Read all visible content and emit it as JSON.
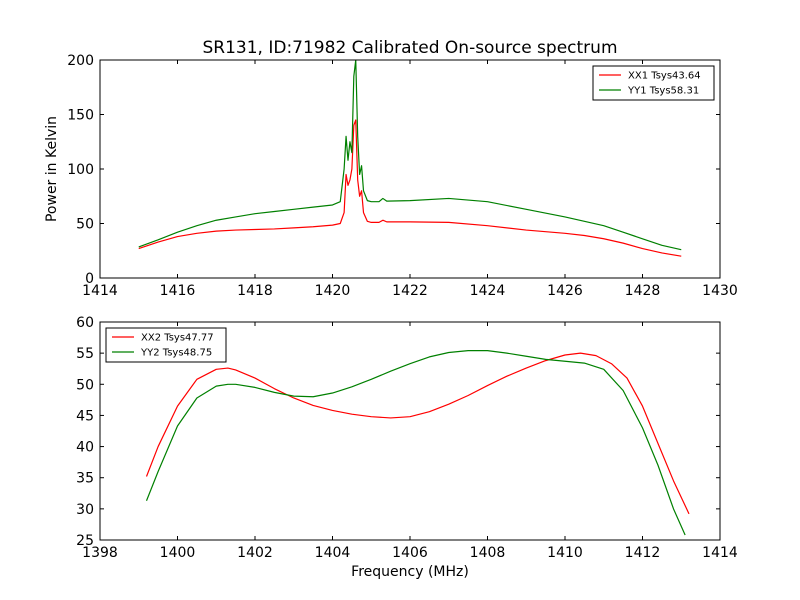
{
  "figure": {
    "title": "SR131, ID:71982 Calibrated On-source spectrum"
  },
  "chart_data": [
    {
      "type": "line",
      "xlim": [
        1414,
        1430
      ],
      "ylim": [
        0,
        200
      ],
      "xticks": [
        1414,
        1416,
        1418,
        1420,
        1422,
        1424,
        1426,
        1428,
        1430
      ],
      "yticks": [
        0,
        50,
        100,
        150,
        200
      ],
      "xlabel": "",
      "ylabel": "Power in Kelvin",
      "legend_position": "top-right",
      "grid": false,
      "series": [
        {
          "name": "XX1 Tsys43.64",
          "color": "#ff0000",
          "x": [
            1415.0,
            1415.5,
            1416.0,
            1416.5,
            1417.0,
            1417.5,
            1418.0,
            1418.5,
            1419.0,
            1419.5,
            1420.0,
            1420.2,
            1420.3,
            1420.35,
            1420.4,
            1420.45,
            1420.5,
            1420.55,
            1420.6,
            1420.65,
            1420.7,
            1420.75,
            1420.8,
            1420.9,
            1421.0,
            1421.2,
            1421.3,
            1421.4,
            1422.0,
            1423.0,
            1424.0,
            1425.0,
            1426.0,
            1426.5,
            1427.0,
            1427.5,
            1428.0,
            1428.5,
            1429.0
          ],
          "y": [
            27,
            33,
            38,
            41,
            43,
            44,
            44.5,
            45,
            46,
            47,
            48.5,
            50,
            60,
            95,
            85,
            90,
            100,
            140,
            145,
            90,
            75,
            80,
            60,
            52,
            51,
            51,
            53,
            51.5,
            51.5,
            51,
            48,
            44,
            41,
            39,
            36,
            32,
            27,
            23,
            20
          ]
        },
        {
          "name": "YY1 Tsys58.31",
          "color": "#008000",
          "x": [
            1415.0,
            1415.5,
            1416.0,
            1416.5,
            1417.0,
            1417.5,
            1418.0,
            1418.5,
            1419.0,
            1419.5,
            1420.0,
            1420.2,
            1420.3,
            1420.35,
            1420.4,
            1420.45,
            1420.5,
            1420.55,
            1420.6,
            1420.65,
            1420.7,
            1420.75,
            1420.8,
            1420.9,
            1421.0,
            1421.2,
            1421.3,
            1421.4,
            1422.0,
            1423.0,
            1424.0,
            1425.0,
            1426.0,
            1426.5,
            1427.0,
            1427.5,
            1428.0,
            1428.5,
            1429.0
          ],
          "y": [
            28.5,
            35,
            42,
            48,
            53,
            56,
            59,
            61,
            63,
            65,
            67,
            70,
            100,
            130,
            108,
            125,
            115,
            185,
            200,
            130,
            95,
            103,
            80,
            71,
            70,
            70,
            73,
            70.5,
            71,
            73,
            70,
            63,
            56,
            52,
            48,
            42,
            36,
            30,
            26
          ]
        }
      ]
    },
    {
      "type": "line",
      "xlim": [
        1398,
        1414
      ],
      "ylim": [
        25,
        60
      ],
      "xticks": [
        1398,
        1400,
        1402,
        1404,
        1406,
        1408,
        1410,
        1412,
        1414
      ],
      "yticks": [
        25,
        30,
        35,
        40,
        45,
        50,
        55,
        60
      ],
      "xlabel": "Frequency (MHz)",
      "ylabel": "",
      "legend_position": "top-left",
      "grid": false,
      "series": [
        {
          "name": "XX2 Tsys47.77",
          "color": "#ff0000",
          "x": [
            1399.2,
            1399.5,
            1400.0,
            1400.5,
            1401.0,
            1401.3,
            1401.5,
            1402.0,
            1402.5,
            1403.0,
            1403.5,
            1404.0,
            1404.5,
            1405.0,
            1405.5,
            1406.0,
            1406.5,
            1407.0,
            1407.5,
            1408.0,
            1408.5,
            1409.0,
            1409.5,
            1410.0,
            1410.4,
            1410.8,
            1411.2,
            1411.6,
            1412.0,
            1412.4,
            1412.8,
            1413.2
          ],
          "y": [
            35.2,
            40,
            46.5,
            50.8,
            52.4,
            52.6,
            52.3,
            51,
            49.3,
            47.8,
            46.6,
            45.8,
            45.2,
            44.8,
            44.6,
            44.8,
            45.6,
            46.8,
            48.2,
            49.8,
            51.3,
            52.6,
            53.8,
            54.7,
            55,
            54.6,
            53.3,
            51,
            46.5,
            40.5,
            34.5,
            29.2
          ]
        },
        {
          "name": "YY2 Tsys48.75",
          "color": "#008000",
          "x": [
            1399.2,
            1399.5,
            1400.0,
            1400.5,
            1401.0,
            1401.3,
            1401.5,
            1402.0,
            1402.5,
            1403.0,
            1403.5,
            1404.0,
            1404.5,
            1405.0,
            1405.5,
            1406.0,
            1406.5,
            1407.0,
            1407.5,
            1408.0,
            1408.5,
            1409.0,
            1409.5,
            1410.0,
            1410.5,
            1411.0,
            1411.5,
            1412.0,
            1412.4,
            1412.8,
            1413.1
          ],
          "y": [
            31.3,
            36,
            43.3,
            47.8,
            49.7,
            50,
            50,
            49.5,
            48.7,
            48.1,
            48,
            48.6,
            49.6,
            50.8,
            52.1,
            53.3,
            54.4,
            55.1,
            55.4,
            55.4,
            55,
            54.5,
            54,
            53.7,
            53.4,
            52.4,
            49,
            43,
            37,
            30,
            25.8
          ]
        }
      ]
    }
  ]
}
